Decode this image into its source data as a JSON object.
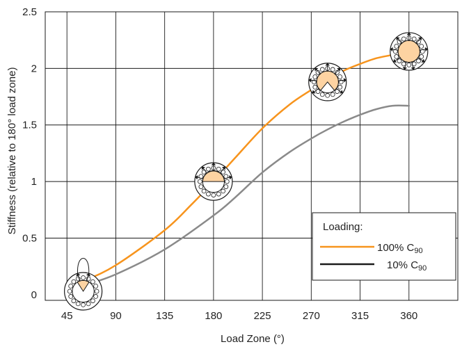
{
  "chart_data": {
    "type": "line",
    "title": "",
    "xlabel": "Load Zone (°)",
    "ylabel": "Stiffness (relative to 180° load zone)",
    "x_ticks": [
      "45",
      "90",
      "135",
      "180",
      "225",
      "270",
      "315",
      "360"
    ],
    "y_ticks": [
      "0",
      "0.5",
      "1",
      "1.5",
      "2",
      "2.5"
    ],
    "xlim": [
      25,
      405
    ],
    "ylim": [
      -0.05,
      2.5
    ],
    "grid": true,
    "legend": {
      "title": "Loading:",
      "position": "bottom-right",
      "entries": [
        {
          "main": "100% C",
          "sub": "90",
          "color": "#f7941d"
        },
        {
          "main": "10% C",
          "sub": "90",
          "color": "#1a1a1a"
        }
      ]
    },
    "series": [
      {
        "name": "100% C90",
        "color": "#f7941d",
        "x": [
          45,
          60,
          90,
          135,
          160,
          180,
          200,
          225,
          250,
          270,
          285,
          300,
          315,
          330,
          345,
          360
        ],
        "y": [
          0.07,
          0.12,
          0.26,
          0.57,
          0.8,
          1.0,
          1.21,
          1.47,
          1.68,
          1.81,
          1.9,
          1.98,
          2.04,
          2.09,
          2.12,
          2.15
        ]
      },
      {
        "name": "",
        "color": "#8a8a8a",
        "x": [
          45,
          60,
          90,
          135,
          180,
          200,
          225,
          250,
          270,
          285,
          300,
          315,
          330,
          345,
          360
        ],
        "y": [
          0.04,
          0.08,
          0.18,
          0.4,
          0.7,
          0.86,
          1.08,
          1.26,
          1.38,
          1.46,
          1.53,
          1.59,
          1.64,
          1.67,
          1.67
        ]
      }
    ],
    "bearing_icons": [
      {
        "x": 60,
        "y": 0.03,
        "fraction": 0.18
      },
      {
        "x": 180,
        "y": 1.0,
        "fraction": 0.5
      },
      {
        "x": 285,
        "y": 1.88,
        "fraction": 0.78
      },
      {
        "x": 360,
        "y": 2.15,
        "fraction": 1.0
      }
    ],
    "icon_color": "#fdd3a2",
    "arrow_color": "#1a1a1a"
  }
}
